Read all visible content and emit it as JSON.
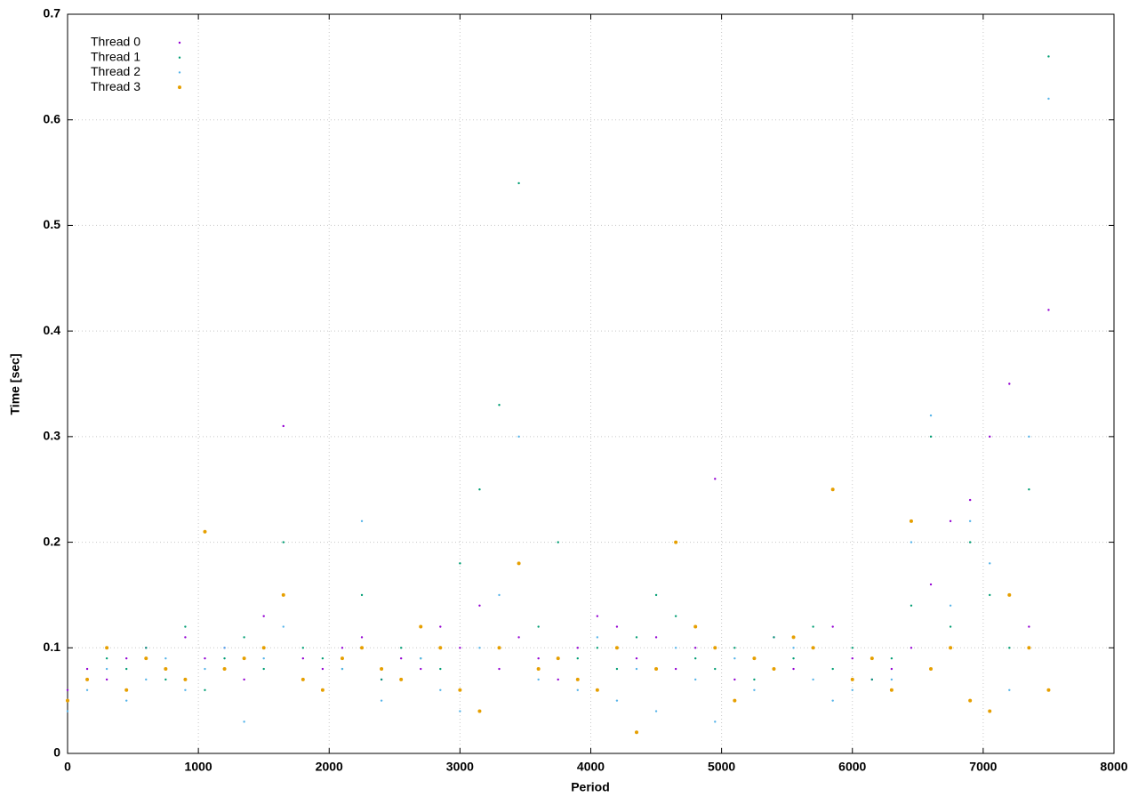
{
  "chart_data": {
    "type": "scatter",
    "xlabel": "Period",
    "ylabel": "Time [sec]",
    "x": [
      0,
      150,
      300,
      450,
      600,
      750,
      900,
      1050,
      1200,
      1350,
      1500,
      1650,
      1800,
      1950,
      2100,
      2250,
      2400,
      2550,
      2700,
      2850,
      3000,
      3150,
      3300,
      3450,
      3600,
      3750,
      3900,
      4050,
      4200,
      4350,
      4500,
      4650,
      4800,
      4950,
      5100,
      5250,
      5400,
      5550,
      5700,
      5850,
      6000,
      6150,
      6300,
      6450,
      6600,
      6750,
      6900,
      7050,
      7200,
      7350,
      7500
    ],
    "series": [
      {
        "name": "Thread 0",
        "color": "#9400d3",
        "values": [
          0.06,
          0.08,
          0.07,
          0.09,
          0.1,
          0.08,
          0.11,
          0.09,
          0.1,
          0.07,
          0.13,
          0.31,
          0.09,
          0.08,
          0.1,
          0.11,
          0.07,
          0.09,
          0.08,
          0.12,
          0.1,
          0.14,
          0.08,
          0.11,
          0.09,
          0.07,
          0.1,
          0.13,
          0.12,
          0.09,
          0.11,
          0.08,
          0.1,
          0.26,
          0.07,
          0.09,
          0.11,
          0.08,
          0.1,
          0.12,
          0.09,
          0.07,
          0.08,
          0.1,
          0.16,
          0.22,
          0.24,
          0.3,
          0.35,
          0.12,
          0.42
        ]
      },
      {
        "name": "Thread 1",
        "color": "#009e73",
        "values": [
          0.05,
          0.07,
          0.09,
          0.08,
          0.1,
          0.07,
          0.12,
          0.06,
          0.09,
          0.11,
          0.08,
          0.2,
          0.1,
          0.09,
          0.08,
          0.15,
          0.07,
          0.1,
          0.09,
          0.08,
          0.18,
          0.25,
          0.33,
          0.54,
          0.12,
          0.2,
          0.09,
          0.1,
          0.08,
          0.11,
          0.15,
          0.13,
          0.09,
          0.08,
          0.1,
          0.07,
          0.11,
          0.09,
          0.12,
          0.08,
          0.1,
          0.07,
          0.09,
          0.14,
          0.3,
          0.12,
          0.2,
          0.15,
          0.1,
          0.25,
          0.66
        ]
      },
      {
        "name": "Thread 2",
        "color": "#56b4e9",
        "values": [
          0.04,
          0.06,
          0.08,
          0.05,
          0.07,
          0.09,
          0.06,
          0.08,
          0.1,
          0.03,
          0.09,
          0.12,
          0.07,
          0.06,
          0.08,
          0.22,
          0.05,
          0.07,
          0.09,
          0.06,
          0.04,
          0.1,
          0.15,
          0.3,
          0.07,
          0.09,
          0.06,
          0.11,
          0.05,
          0.08,
          0.04,
          0.1,
          0.07,
          0.03,
          0.09,
          0.06,
          0.08,
          0.1,
          0.07,
          0.05,
          0.06,
          0.09,
          0.07,
          0.2,
          0.32,
          0.14,
          0.22,
          0.18,
          0.06,
          0.3,
          0.62
        ]
      },
      {
        "name": "Thread 3",
        "color": "#e69f00",
        "values": [
          0.05,
          0.07,
          0.1,
          0.06,
          0.09,
          0.08,
          0.07,
          0.21,
          0.08,
          0.09,
          0.1,
          0.15,
          0.07,
          0.06,
          0.09,
          0.1,
          0.08,
          0.07,
          0.12,
          0.1,
          0.06,
          0.04,
          0.1,
          0.18,
          0.08,
          0.09,
          0.07,
          0.06,
          0.1,
          0.02,
          0.08,
          0.2,
          0.12,
          0.1,
          0.05,
          0.09,
          0.08,
          0.11,
          0.1,
          0.25,
          0.07,
          0.09,
          0.06,
          0.22,
          0.08,
          0.1,
          0.05,
          0.04,
          0.15,
          0.1,
          0.06
        ]
      }
    ],
    "xlim": [
      0,
      8000
    ],
    "xticks": [
      0,
      1000,
      2000,
      3000,
      4000,
      5000,
      6000,
      7000,
      8000
    ],
    "ylim": [
      0,
      0.7
    ],
    "yticks": [
      0,
      0.1,
      0.2,
      0.3,
      0.4,
      0.5,
      0.6,
      0.7
    ],
    "grid": true,
    "legend": "top-left"
  }
}
